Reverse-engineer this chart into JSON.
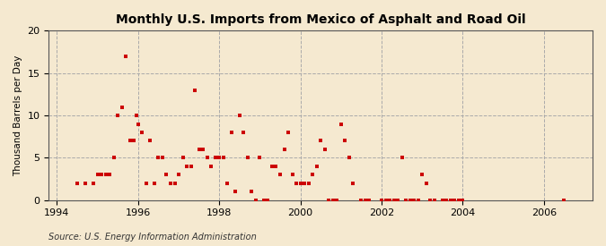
{
  "title": "Monthly U.S. Imports from Mexico of Asphalt and Road Oil",
  "ylabel": "Thousand Barrels per Day",
  "source": "Source: U.S. Energy Information Administration",
  "background_color": "#f5e9d0",
  "marker_color": "#cc0000",
  "xlim": [
    1993.8,
    2007.2
  ],
  "ylim": [
    0,
    20
  ],
  "yticks": [
    0,
    5,
    10,
    15,
    20
  ],
  "xticks": [
    1994,
    1996,
    1998,
    2000,
    2002,
    2004,
    2006
  ],
  "scatter_x": [
    1994.5,
    1994.7,
    1994.9,
    1995.0,
    1995.1,
    1995.2,
    1995.3,
    1995.4,
    1995.5,
    1995.6,
    1995.7,
    1995.8,
    1995.9,
    1995.95,
    1996.0,
    1996.1,
    1996.2,
    1996.3,
    1996.4,
    1996.5,
    1996.6,
    1996.7,
    1996.8,
    1996.9,
    1997.0,
    1997.1,
    1997.2,
    1997.3,
    1997.4,
    1997.5,
    1997.6,
    1997.7,
    1997.8,
    1997.9,
    1998.0,
    1998.1,
    1998.2,
    1998.3,
    1998.4,
    1998.5,
    1998.6,
    1998.7,
    1998.8,
    1998.9,
    1999.0,
    1999.1,
    1999.2,
    1999.3,
    1999.4,
    1999.5,
    1999.6,
    1999.7,
    1999.8,
    1999.9,
    2000.0,
    2000.1,
    2000.2,
    2000.3,
    2000.4,
    2000.5,
    2000.6,
    2000.7,
    2000.8,
    2000.9,
    2001.0,
    2001.1,
    2001.2,
    2001.3,
    2001.5,
    2001.6,
    2001.7,
    2002.0,
    2002.1,
    2002.2,
    2002.3,
    2002.4,
    2002.5,
    2002.6,
    2002.7,
    2002.8,
    2002.9,
    2003.0,
    2003.1,
    2003.2,
    2003.3,
    2003.5,
    2003.6,
    2003.7,
    2003.8,
    2003.9,
    2004.0,
    2006.5
  ],
  "scatter_y": [
    2,
    2,
    2,
    3,
    3,
    3,
    3,
    5,
    10,
    11,
    17,
    7,
    7,
    10,
    9,
    8,
    2,
    7,
    2,
    5,
    5,
    3,
    2,
    2,
    3,
    5,
    4,
    4,
    13,
    6,
    6,
    5,
    4,
    5,
    5,
    5,
    2,
    8,
    1,
    10,
    8,
    5,
    1,
    0,
    5,
    0,
    0,
    4,
    4,
    3,
    6,
    8,
    3,
    2,
    2,
    2,
    2,
    3,
    4,
    7,
    6,
    0,
    0,
    0,
    9,
    7,
    5,
    2,
    0,
    0,
    0,
    0,
    0,
    0,
    0,
    0,
    5,
    0,
    0,
    0,
    0,
    3,
    2,
    0,
    0,
    0,
    0,
    0,
    0,
    0,
    0,
    0
  ]
}
